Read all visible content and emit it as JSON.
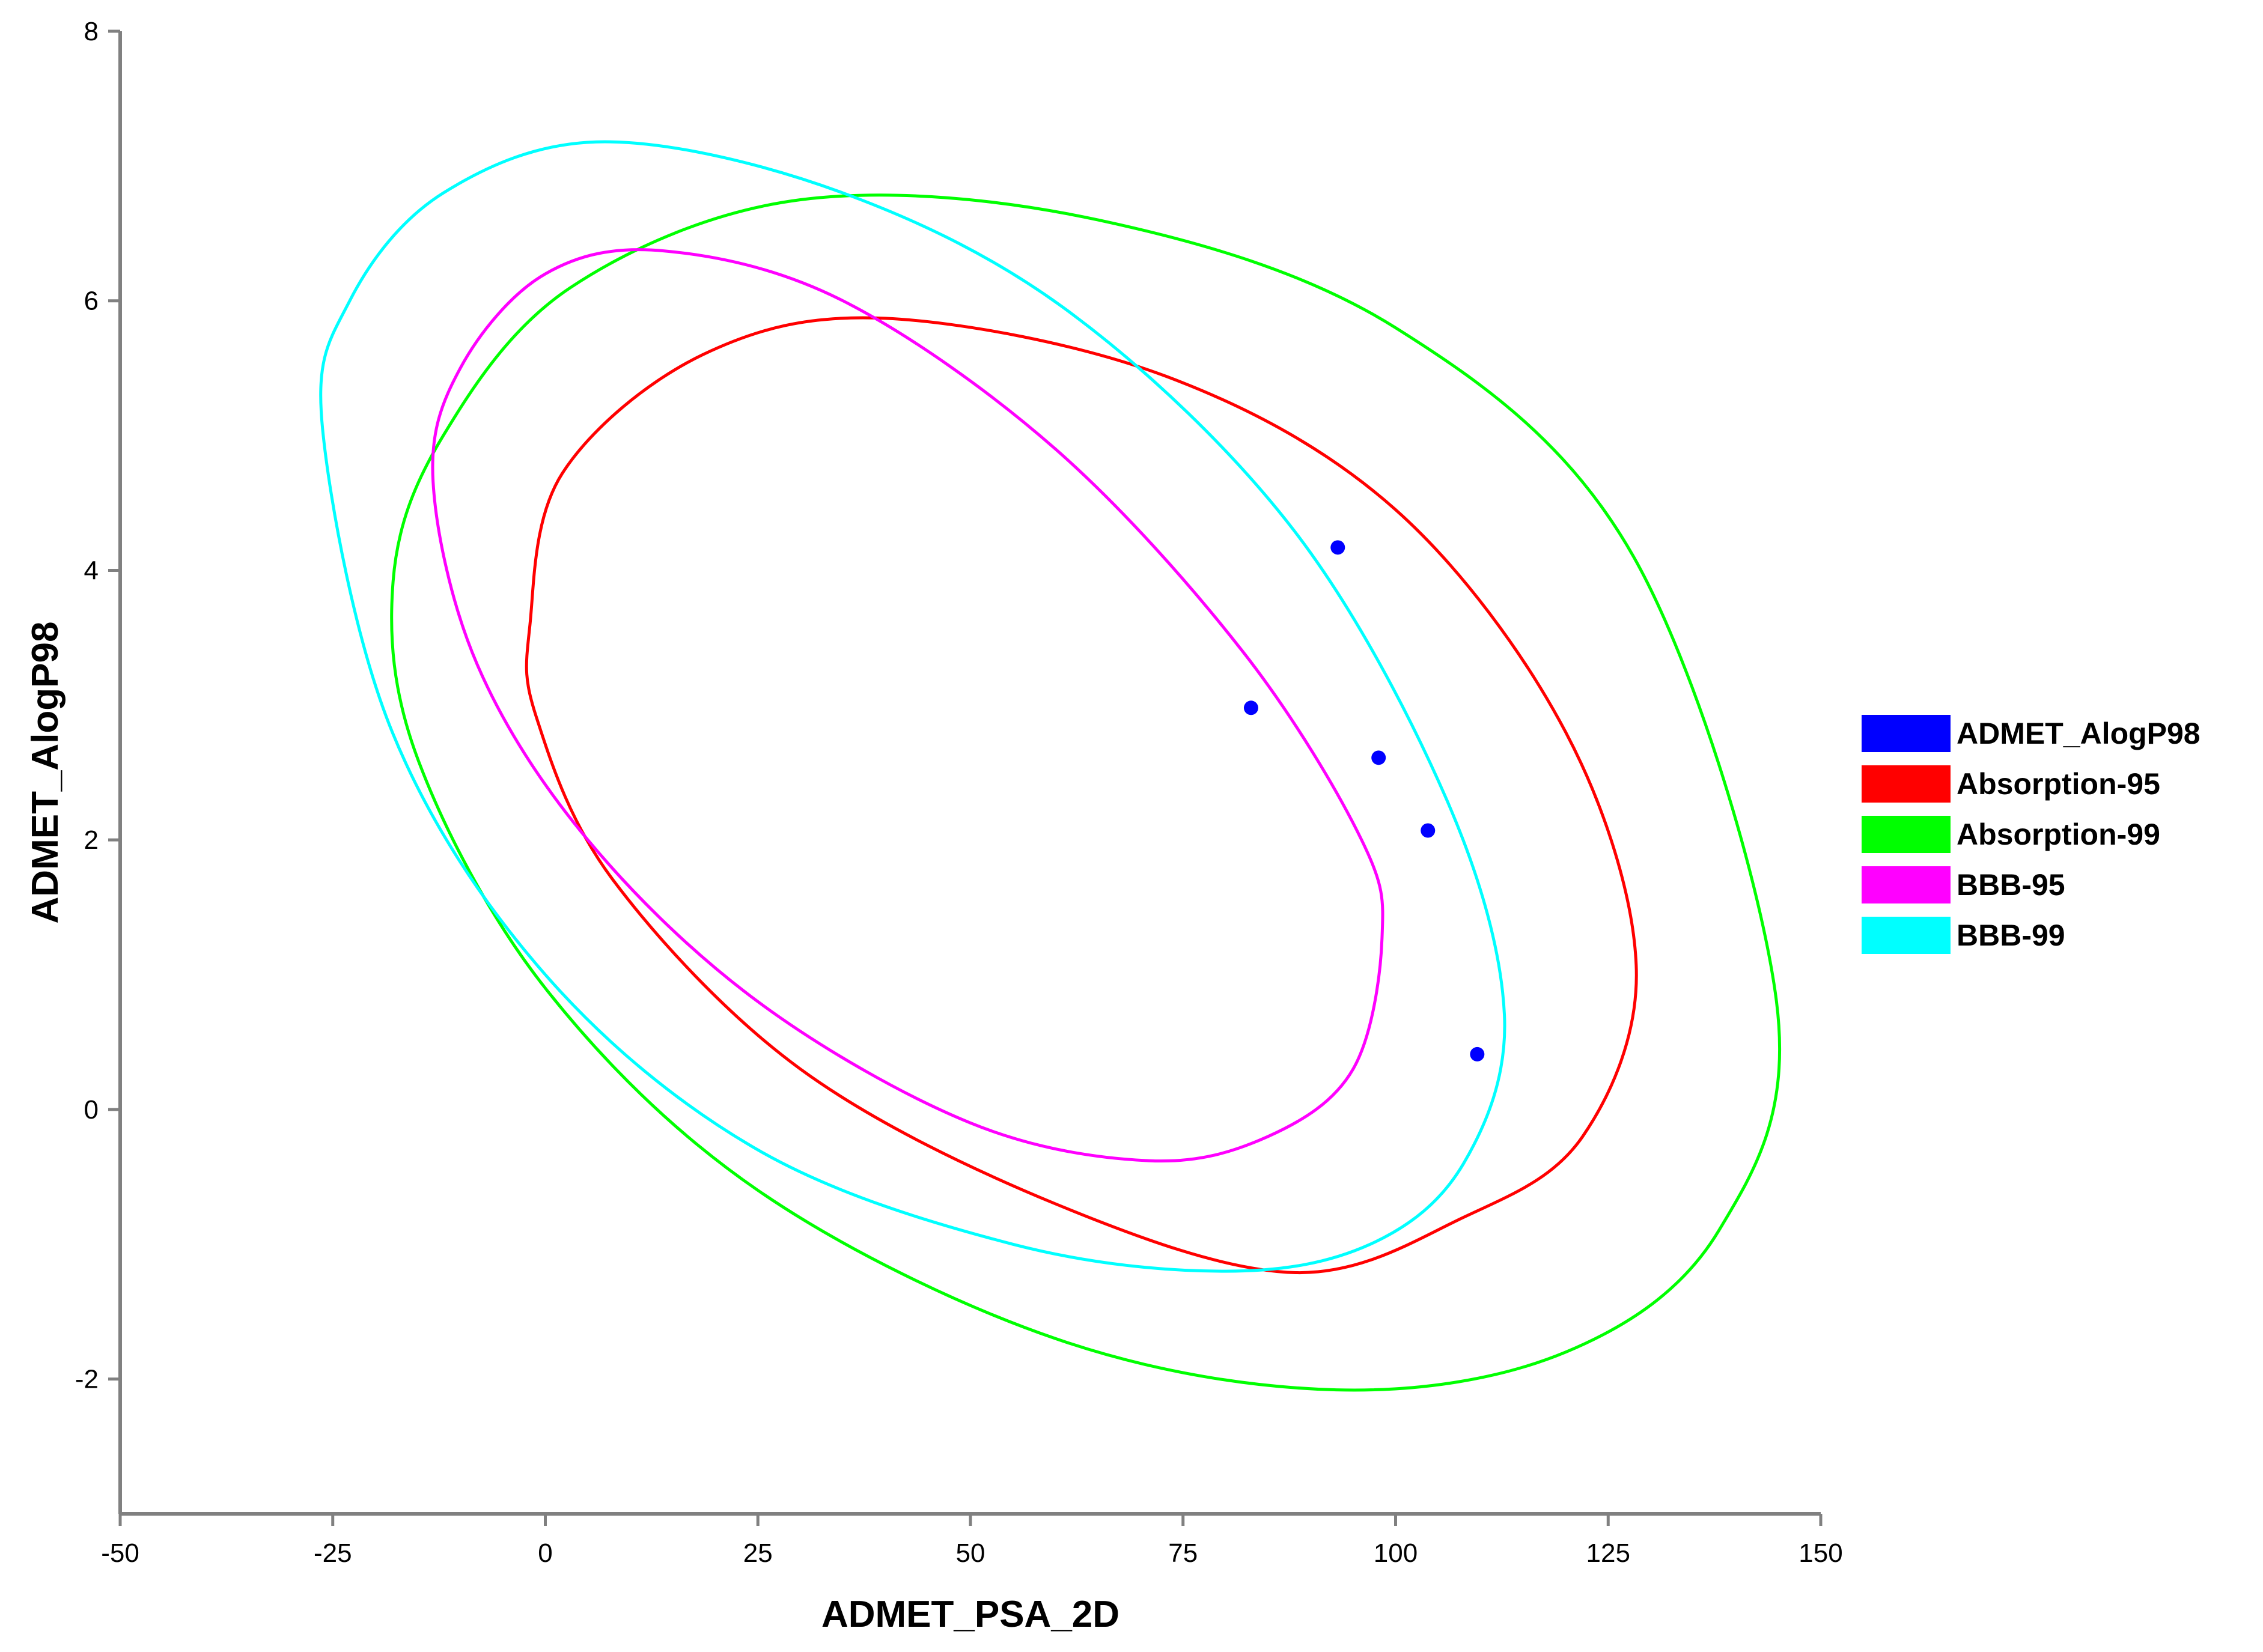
{
  "chart_data": {
    "type": "scatter",
    "title": "",
    "xlabel": "ADMET_PSA_2D",
    "ylabel": "ADMET_AlogP98",
    "xlim": [
      -50,
      150
    ],
    "ylim": [
      -3,
      8
    ],
    "x_ticks": [
      -50,
      -25,
      0,
      25,
      50,
      75,
      100,
      125,
      150
    ],
    "y_ticks": [
      -2,
      0,
      2,
      4,
      6,
      8
    ],
    "x_tick_labels": [
      "-50",
      "-25",
      "0",
      "25",
      "50",
      "75",
      "100",
      "125",
      "150"
    ],
    "y_tick_labels": [
      "-2",
      "0",
      "2",
      "4",
      "6",
      "8"
    ],
    "grid": false,
    "legend_position": "right",
    "series": [
      {
        "name": "ADMET_AlogP98",
        "kind": "points",
        "color": "#0000ff",
        "points": [
          {
            "x": 93.2,
            "y": 4.17
          },
          {
            "x": 83.0,
            "y": 2.98
          },
          {
            "x": 98.0,
            "y": 2.61
          },
          {
            "x": 103.8,
            "y": 2.07
          },
          {
            "x": 109.6,
            "y": 0.41
          }
        ]
      },
      {
        "name": "Absorption-95",
        "kind": "ellipse",
        "color": "#ff0000",
        "curve": [
          {
            "x": -1.8,
            "y": 3.6
          },
          {
            "x": 2.0,
            "y": 4.72
          },
          {
            "x": 18.5,
            "y": 5.6
          },
          {
            "x": 40.0,
            "y": 5.87
          },
          {
            "x": 73.0,
            "y": 5.44
          },
          {
            "x": 100.0,
            "y": 4.45
          },
          {
            "x": 120.0,
            "y": 2.8
          },
          {
            "x": 128.3,
            "y": 1.07
          },
          {
            "x": 122.0,
            "y": -0.2
          },
          {
            "x": 108.0,
            "y": -0.8
          },
          {
            "x": 88.0,
            "y": -1.21
          },
          {
            "x": 60.0,
            "y": -0.7
          },
          {
            "x": 30.0,
            "y": 0.3
          },
          {
            "x": 8.0,
            "y": 1.7
          },
          {
            "x": -1.0,
            "y": 2.9
          }
        ]
      },
      {
        "name": "Absorption-99",
        "kind": "ellipse",
        "color": "#00ff00",
        "curve": [
          {
            "x": -17.9,
            "y": 3.92
          },
          {
            "x": -12.0,
            "y": 5.0
          },
          {
            "x": 3.0,
            "y": 6.1
          },
          {
            "x": 30.0,
            "y": 6.75
          },
          {
            "x": 65.0,
            "y": 6.6
          },
          {
            "x": 100.0,
            "y": 5.8
          },
          {
            "x": 128.0,
            "y": 4.1
          },
          {
            "x": 144.8,
            "y": 0.8
          },
          {
            "x": 138.0,
            "y": -0.9
          },
          {
            "x": 120.0,
            "y": -1.8
          },
          {
            "x": 93.0,
            "y": -2.08
          },
          {
            "x": 60.0,
            "y": -1.7
          },
          {
            "x": 25.0,
            "y": -0.6
          },
          {
            "x": 0.0,
            "y": 0.9
          },
          {
            "x": -15.0,
            "y": 2.6
          }
        ]
      },
      {
        "name": "BBB-95",
        "kind": "ellipse",
        "color": "#ff00ff",
        "curve": [
          {
            "x": -13.2,
            "y": 4.66
          },
          {
            "x": -10.0,
            "y": 5.5
          },
          {
            "x": 0.0,
            "y": 6.2
          },
          {
            "x": 14.0,
            "y": 6.37
          },
          {
            "x": 35.0,
            "y": 6.0
          },
          {
            "x": 60.0,
            "y": 4.9
          },
          {
            "x": 82.0,
            "y": 3.4
          },
          {
            "x": 96.0,
            "y": 2.0
          },
          {
            "x": 98.4,
            "y": 1.27
          },
          {
            "x": 95.0,
            "y": 0.3
          },
          {
            "x": 85.0,
            "y": -0.2
          },
          {
            "x": 71.0,
            "y": -0.38
          },
          {
            "x": 50.0,
            "y": -0.1
          },
          {
            "x": 25.0,
            "y": 0.8
          },
          {
            "x": 5.0,
            "y": 2.0
          },
          {
            "x": -8.0,
            "y": 3.3
          }
        ]
      },
      {
        "name": "BBB-99",
        "kind": "ellipse",
        "color": "#00ffff",
        "curve": [
          {
            "x": -26.2,
            "y": 5.05
          },
          {
            "x": -23.0,
            "y": 6.0
          },
          {
            "x": -12.0,
            "y": 6.8
          },
          {
            "x": 7.0,
            "y": 7.18
          },
          {
            "x": 35.0,
            "y": 6.8
          },
          {
            "x": 62.0,
            "y": 5.9
          },
          {
            "x": 88.0,
            "y": 4.3
          },
          {
            "x": 106.0,
            "y": 2.3
          },
          {
            "x": 112.8,
            "y": 0.7
          },
          {
            "x": 108.0,
            "y": -0.4
          },
          {
            "x": 97.0,
            "y": -1.0
          },
          {
            "x": 80.0,
            "y": -1.2
          },
          {
            "x": 55.0,
            "y": -1.0
          },
          {
            "x": 25.0,
            "y": -0.3
          },
          {
            "x": 0.0,
            "y": 1.0
          },
          {
            "x": -18.0,
            "y": 2.8
          }
        ]
      }
    ]
  }
}
